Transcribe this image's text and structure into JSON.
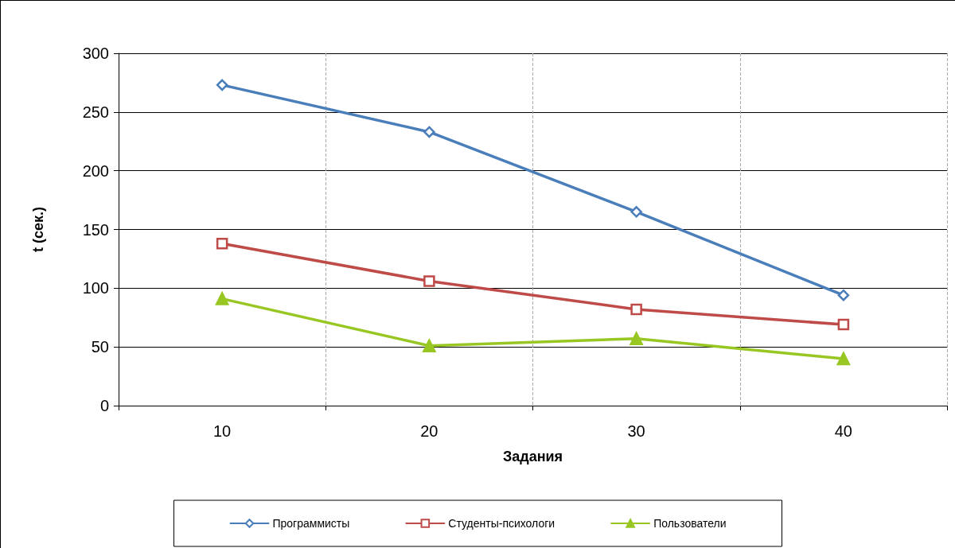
{
  "chart_data": {
    "type": "line",
    "xlabel": "Задания",
    "ylabel": "t (сек.)",
    "categories": [
      "10",
      "20",
      "30",
      "40"
    ],
    "series": [
      {
        "name": "Программисты",
        "color": "#4a7ebb",
        "marker": "diamond",
        "values": [
          273,
          233,
          165,
          94
        ]
      },
      {
        "name": "Студенты-психологи",
        "color": "#be4b48",
        "marker": "square",
        "values": [
          138,
          106,
          82,
          69
        ]
      },
      {
        "name": "Пользователи",
        "color": "#98c723",
        "marker": "triangle",
        "values": [
          91,
          51,
          57,
          40
        ]
      }
    ],
    "ylim": [
      0,
      300
    ],
    "yticks": [
      0,
      50,
      100,
      150,
      200,
      250,
      300
    ],
    "grid": true,
    "legend": "bottom",
    "line_style": "solid"
  }
}
